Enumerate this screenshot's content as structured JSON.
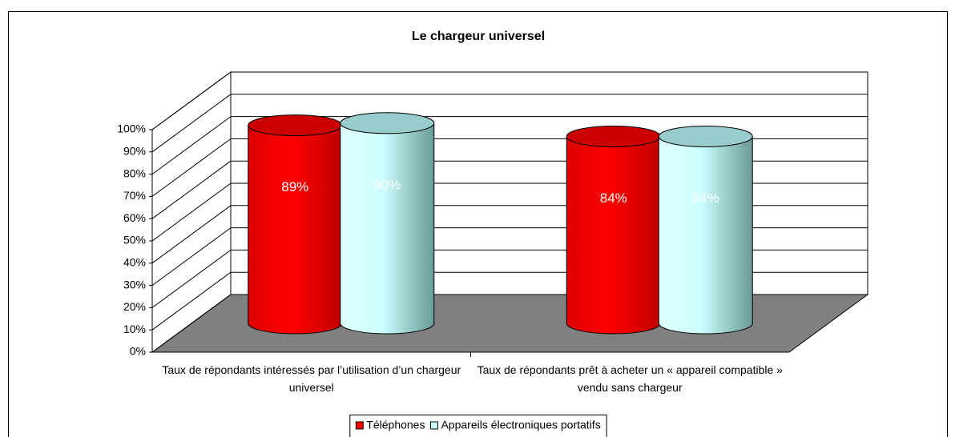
{
  "chart_data": {
    "type": "bar3d-cylinder",
    "title": "Le chargeur universel",
    "categories": [
      "Taux de répondants intéressés par l’utilisation d’un chargeur universel",
      "Taux de répondants prêt à acheter un « appareil compatible » vendu sans chargeur"
    ],
    "series": [
      {
        "name": "Téléphones",
        "color": "#ff0000",
        "values": [
          89,
          84
        ],
        "value_labels": [
          "89%",
          "84%"
        ]
      },
      {
        "name": "Appareils électroniques portatifs",
        "color": "#ccffff",
        "values": [
          90,
          84
        ],
        "value_labels": [
          "90%",
          "84%"
        ]
      }
    ],
    "ylim": [
      0,
      100
    ],
    "yticks": [
      {
        "value": 0,
        "label": "0%"
      },
      {
        "value": 10,
        "label": "10%"
      },
      {
        "value": 20,
        "label": "20%"
      },
      {
        "value": 30,
        "label": "30%"
      },
      {
        "value": 40,
        "label": "40%"
      },
      {
        "value": 50,
        "label": "50%"
      },
      {
        "value": 60,
        "label": "60%"
      },
      {
        "value": 70,
        "label": "70%"
      },
      {
        "value": 80,
        "label": "80%"
      },
      {
        "value": 90,
        "label": "90%"
      },
      {
        "value": 100,
        "label": "100%"
      }
    ],
    "grid": true,
    "legend": "bottom"
  }
}
